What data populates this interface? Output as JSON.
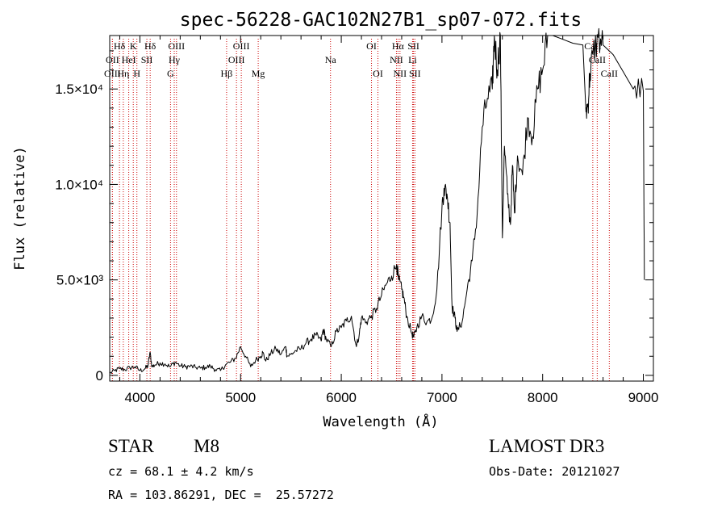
{
  "chart_data": {
    "type": "line",
    "title": "spec-56228-GAC102N27B1_sp07-072.fits",
    "xlabel": "Wavelength (Å)",
    "ylabel": "Flux (relative)",
    "xlim": [
      3700,
      9100
    ],
    "ylim": [
      -300,
      17800
    ],
    "x_ticks": [
      4000,
      5000,
      6000,
      7000,
      8000,
      9000
    ],
    "x_tick_labels": [
      "4000",
      "5000",
      "6000",
      "7000",
      "8000",
      "9000"
    ],
    "y_ticks": [
      0,
      5000,
      10000,
      15000
    ],
    "y_tick_labels": [
      "0",
      "5.0×10³",
      "1.0×10⁴",
      "1.5×10⁴"
    ],
    "series": [
      {
        "name": "spectrum",
        "x": [
          3700,
          3750,
          3800,
          3850,
          3900,
          3950,
          4000,
          4050,
          4080,
          4100,
          4120,
          4150,
          4200,
          4250,
          4300,
          4350,
          4400,
          4450,
          4500,
          4550,
          4600,
          4650,
          4700,
          4750,
          4800,
          4850,
          4900,
          4950,
          5000,
          5050,
          5100,
          5150,
          5200,
          5220,
          5250,
          5300,
          5350,
          5400,
          5450,
          5460,
          5500,
          5550,
          5600,
          5650,
          5700,
          5750,
          5800,
          5820,
          5850,
          5900,
          5950,
          6000,
          6050,
          6100,
          6150,
          6180,
          6200,
          6250,
          6300,
          6350,
          6400,
          6450,
          6500,
          6550,
          6570,
          6600,
          6620,
          6650,
          6700,
          6720,
          6750,
          6800,
          6850,
          6900,
          6950,
          7000,
          7020,
          7050,
          7080,
          7100,
          7130,
          7150,
          7200,
          7250,
          7300,
          7350,
          7400,
          7450,
          7500,
          7520,
          7550,
          7580,
          7600,
          7620,
          7650,
          7680,
          7700,
          7720,
          7750,
          7800,
          7850,
          7900,
          7950,
          8000,
          8050,
          8100,
          8200,
          8300,
          8400,
          8430,
          8450,
          8470,
          8500,
          8550,
          8600,
          8700,
          8800,
          8900,
          9000,
          9010
        ],
        "y": [
          100,
          250,
          350,
          300,
          400,
          450,
          250,
          350,
          500,
          1200,
          450,
          550,
          650,
          600,
          450,
          700,
          500,
          450,
          480,
          420,
          380,
          420,
          480,
          300,
          250,
          550,
          700,
          900,
          1500,
          1000,
          450,
          800,
          1000,
          1200,
          750,
          1150,
          1400,
          1100,
          1500,
          1000,
          1100,
          1300,
          1400,
          1700,
          1900,
          2100,
          1800,
          2400,
          1900,
          1500,
          2300,
          2500,
          2850,
          3100,
          1500,
          2200,
          3000,
          2800,
          3100,
          3500,
          4200,
          4800,
          5200,
          5800,
          5000,
          4500,
          4100,
          3100,
          2200,
          2000,
          2500,
          3100,
          2800,
          3000,
          4500,
          8800,
          9800,
          9500,
          8000,
          3600,
          3000,
          2300,
          2800,
          4500,
          6000,
          8500,
          13000,
          14500,
          15000,
          17800,
          16000,
          17800,
          7200,
          12000,
          9500,
          7900,
          11000,
          8500,
          11500,
          10500,
          13500,
          12500,
          15000,
          16000,
          17800,
          17800,
          17600,
          17400,
          17300,
          13800,
          14200,
          15800,
          16800,
          17700,
          17300,
          16800,
          15900,
          15000,
          14900,
          5000
        ],
        "gaps": [
          [
            7505,
            7530
          ],
          [
            8020,
            8430
          ],
          [
            8570,
            8990
          ]
        ]
      }
    ],
    "spectral_lines": [
      {
        "label": "Hδ",
        "wavelength": 3797,
        "row": 1
      },
      {
        "label": "OII",
        "wavelength": 3727,
        "row": 2
      },
      {
        "label": "OIII",
        "wavelength": 3727,
        "row": 3
      },
      {
        "label": "K",
        "wavelength": 3934,
        "row": 1
      },
      {
        "label": "HeI",
        "wavelength": 3889,
        "row": 2
      },
      {
        "label": "Hη",
        "wavelength": 3835,
        "row": 3
      },
      {
        "label": "SII",
        "wavelength": 4069,
        "row": 2
      },
      {
        "label": "H",
        "wavelength": 3970,
        "row": 3
      },
      {
        "label": "Hδ",
        "wavelength": 4102,
        "row": 1
      },
      {
        "label": "OIII",
        "wavelength": 4363,
        "row": 1
      },
      {
        "label": "Hγ",
        "wavelength": 4341,
        "row": 2
      },
      {
        "label": "G",
        "wavelength": 4304,
        "row": 3
      },
      {
        "label": "OIII",
        "wavelength": 5007,
        "row": 1
      },
      {
        "label": "OIII",
        "wavelength": 4959,
        "row": 2
      },
      {
        "label": "Hβ",
        "wavelength": 4861,
        "row": 3
      },
      {
        "label": "Mg",
        "wavelength": 5175,
        "row": 3
      },
      {
        "label": "Na",
        "wavelength": 5893,
        "row": 2
      },
      {
        "label": "OI",
        "wavelength": 6300,
        "row": 1
      },
      {
        "label": "OI",
        "wavelength": 6364,
        "row": 3
      },
      {
        "label": "Hα",
        "wavelength": 6563,
        "row": 1
      },
      {
        "label": "SII",
        "wavelength": 6717,
        "row": 1
      },
      {
        "label": "NII",
        "wavelength": 6548,
        "row": 2
      },
      {
        "label": "Li",
        "wavelength": 6708,
        "row": 2
      },
      {
        "label": "NII",
        "wavelength": 6583,
        "row": 3
      },
      {
        "label": "SII",
        "wavelength": 6731,
        "row": 3
      },
      {
        "label": "CaII",
        "wavelength": 8498,
        "row": 1
      },
      {
        "label": "CaII",
        "wavelength": 8542,
        "row": 2
      },
      {
        "label": "CaII",
        "wavelength": 8662,
        "row": 3
      }
    ],
    "grid": false,
    "legend": "none"
  },
  "info": {
    "object_class": "STAR",
    "subclass": "M8",
    "survey": "LAMOST DR3",
    "redshift_line": "cz = 68.1 ± 4.2 km/s",
    "obs_date_line": "Obs-Date: 20121027",
    "coords_line": "RA = 103.86291, DEC =  25.57272"
  },
  "colors": {
    "axis": "#000000",
    "spectrum": "#000000",
    "line_marker": "#cc0000",
    "background": "#ffffff"
  }
}
